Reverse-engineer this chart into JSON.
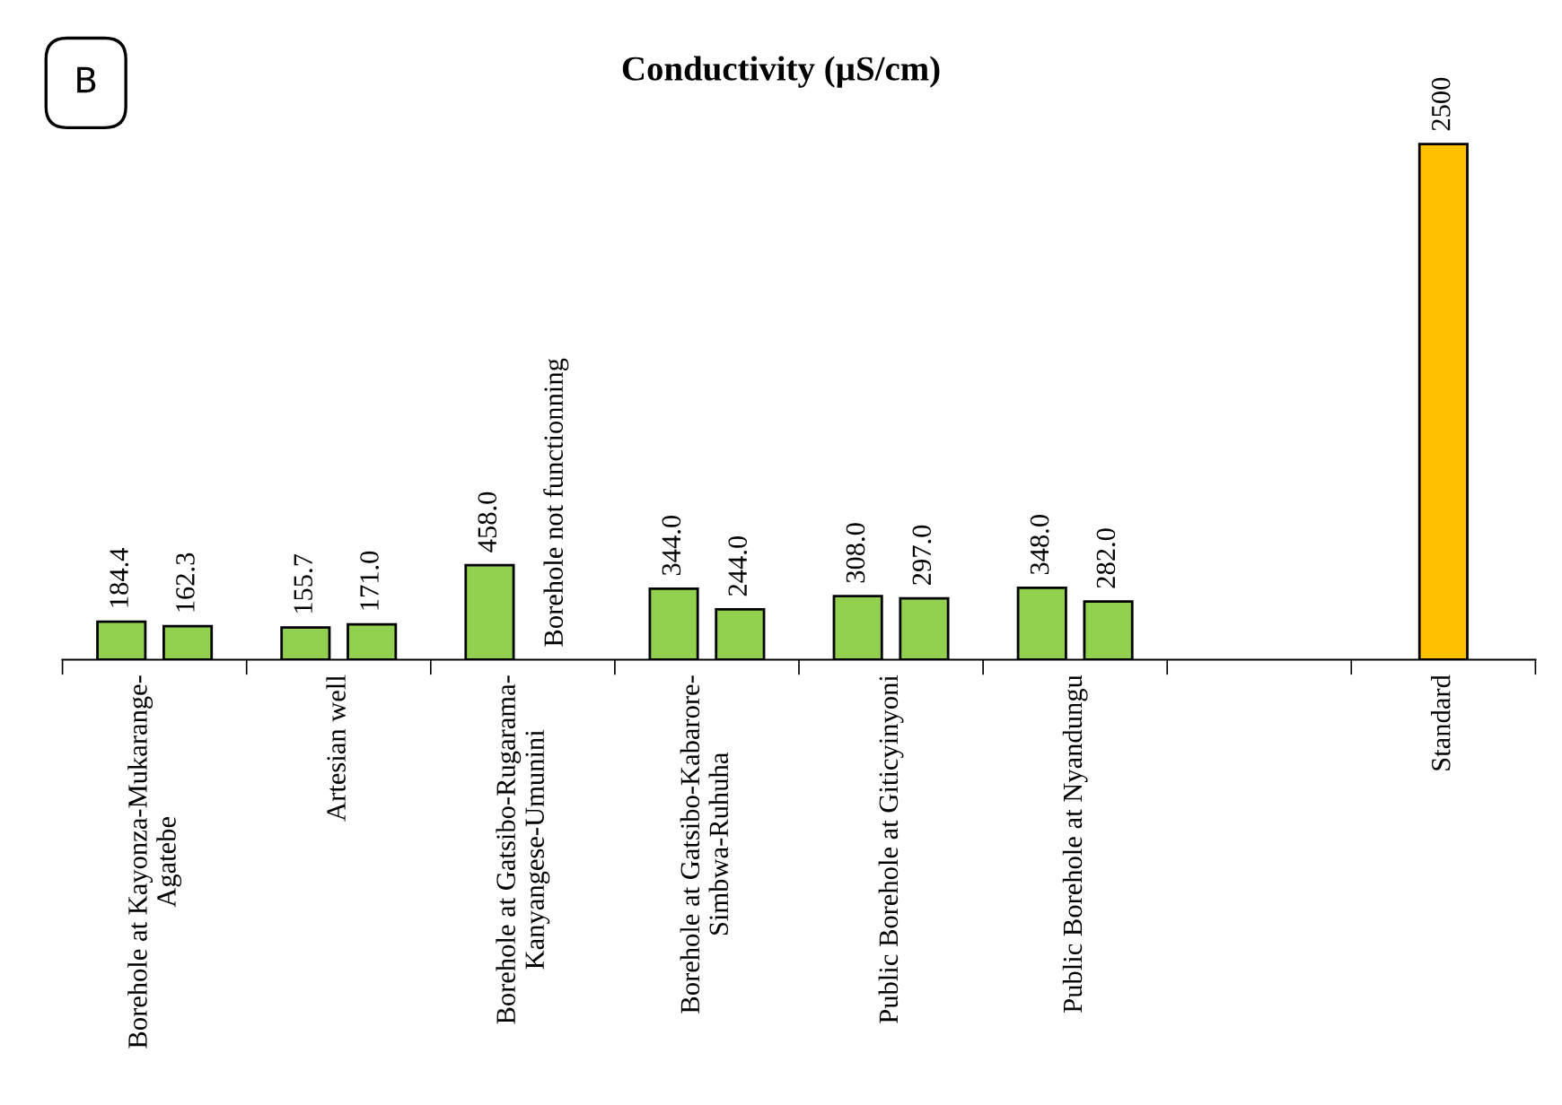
{
  "chart_data": {
    "type": "bar",
    "title": "Conductivity (µS/cm)",
    "annotations": [
      "B"
    ],
    "categories": [
      "Borehole at Kayonza-Mukarange-\nAgatebe",
      "Artesian well",
      "Borehole at Gatsibo-Rugarama-\nKanyangese-Umunini",
      "Borehole at Gatsibo-Kabarore-\nSimbwa-Ruhuha",
      "Public Borehole at Giticyinyoni",
      "Public Borehole at Nyandungu",
      null,
      "Standard"
    ],
    "series": [
      {
        "color": "#92d050",
        "values": [
          184.4,
          155.7,
          458.0,
          344.0,
          308.0,
          348.0,
          null,
          null
        ],
        "value_labels": [
          "184.4",
          "155.7",
          "458.0",
          "344.0",
          "308.0",
          "348.0",
          null,
          null
        ]
      },
      {
        "color": "#92d050",
        "values": [
          162.3,
          171.0,
          null,
          244.0,
          297.0,
          282.0,
          null,
          null
        ],
        "value_labels": [
          "162.3",
          "171.0",
          "Borehole not functionning",
          "244.0",
          "297.0",
          "282.0",
          null,
          null
        ]
      },
      {
        "color": "#ffc000",
        "values": [
          null,
          null,
          null,
          null,
          null,
          null,
          null,
          2500
        ],
        "value_labels": [
          null,
          null,
          null,
          null,
          null,
          null,
          null,
          "2500"
        ]
      }
    ],
    "grid": false
  }
}
